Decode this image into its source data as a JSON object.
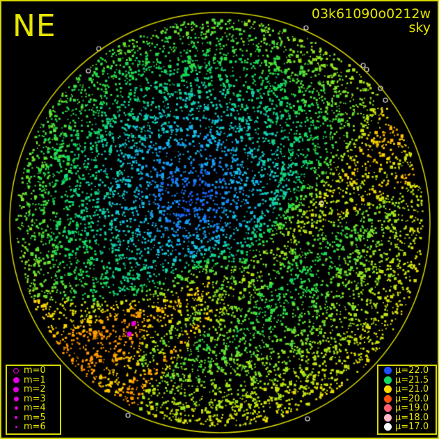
{
  "header": {
    "direction_label": "NE",
    "frame_id": "03k61090o0212w",
    "frame_type": "sky"
  },
  "magnitude_legend": [
    {
      "label": "m=0",
      "style": "ring"
    },
    {
      "label": "m=1",
      "style": "dot"
    },
    {
      "label": "m=2",
      "style": "dot"
    },
    {
      "label": "m=3",
      "style": "dot"
    },
    {
      "label": "m=4",
      "style": "dot"
    },
    {
      "label": "m=5",
      "style": "dot"
    },
    {
      "label": "m=6",
      "style": "dot"
    }
  ],
  "magnitude_color": "#e000e0",
  "brightness_legend": [
    {
      "label": "μ=22.0",
      "color": "#1a50ff"
    },
    {
      "label": "μ=21.5",
      "color": "#10dd60"
    },
    {
      "label": "μ=21.0",
      "color": "#ffd800"
    },
    {
      "label": "μ=20.0",
      "color": "#ff5010"
    },
    {
      "label": "μ=19.0",
      "color": "#ff6070"
    },
    {
      "label": "μ=18.0",
      "color": "#ffb8c8"
    },
    {
      "label": "μ=17.0",
      "color": "#ffffff"
    }
  ],
  "colors": {
    "text": "#e6e600",
    "horizon": "#d8d800",
    "background": "#000000"
  }
}
